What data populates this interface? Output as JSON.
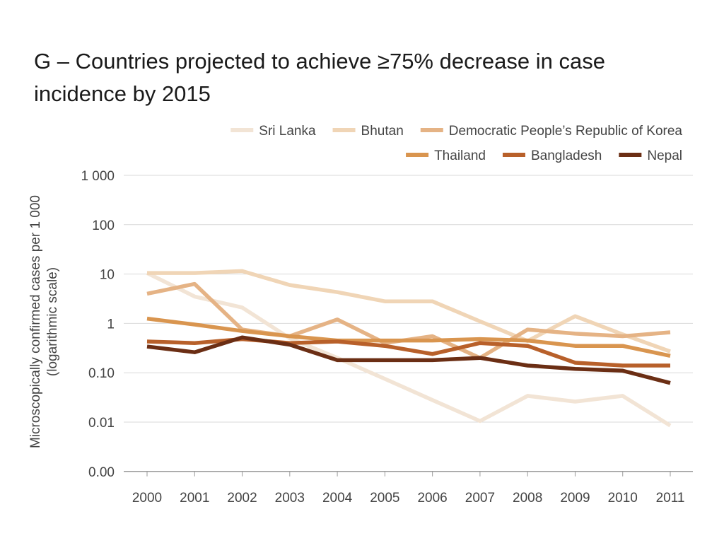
{
  "chart_data": {
    "type": "line",
    "title": "G – Countries projected to achieve ≥75% decrease in case incidence by 2015",
    "ylabel": "Microscopically confirmed cases per 1 000",
    "ylabel_sub": "(logarithmic scale)",
    "xlabel": "",
    "y_scale": "log",
    "y_tick_values": [
      0.001,
      0.01,
      0.1,
      1,
      10,
      100,
      1000
    ],
    "y_tick_labels": [
      "0.00",
      "0.01",
      "0.10",
      "1",
      "10",
      "100",
      "1 000"
    ],
    "categories": [
      "2000",
      "2001",
      "2002",
      "2003",
      "2004",
      "2005",
      "2006",
      "2007",
      "2008",
      "2009",
      "2010",
      "2011"
    ],
    "legend_position": "top-right",
    "grid": true,
    "series": [
      {
        "name": "Sri Lanka",
        "color": "#f2e4d5",
        "values": [
          10.5,
          3.5,
          2.1,
          0.5,
          0.2,
          0.075,
          0.028,
          0.0105,
          0.034,
          0.026,
          0.034,
          0.0085
        ]
      },
      {
        "name": "Bhutan",
        "color": "#f0d5b6",
        "values": [
          10.5,
          10.5,
          11.5,
          6.0,
          4.3,
          2.8,
          2.8,
          1.1,
          0.44,
          1.4,
          0.6,
          0.27
        ]
      },
      {
        "name": "Democratic People’s Republic of Korea",
        "color": "#e5b385",
        "values": [
          4.0,
          6.3,
          0.75,
          0.55,
          1.2,
          0.4,
          0.55,
          0.2,
          0.75,
          0.62,
          0.55,
          0.66
        ]
      },
      {
        "name": "Thailand",
        "color": "#d9954f",
        "values": [
          1.25,
          0.95,
          0.7,
          0.55,
          0.45,
          0.45,
          0.45,
          0.48,
          0.45,
          0.35,
          0.35,
          0.22
        ]
      },
      {
        "name": "Bangladesh",
        "color": "#b8602a",
        "values": [
          0.43,
          0.4,
          0.48,
          0.4,
          0.43,
          0.35,
          0.24,
          0.4,
          0.35,
          0.16,
          0.14,
          0.14
        ]
      },
      {
        "name": "Nepal",
        "color": "#6b2e14",
        "values": [
          0.34,
          0.26,
          0.52,
          0.37,
          0.18,
          0.18,
          0.18,
          0.2,
          0.14,
          0.12,
          0.11,
          0.062
        ]
      }
    ]
  }
}
